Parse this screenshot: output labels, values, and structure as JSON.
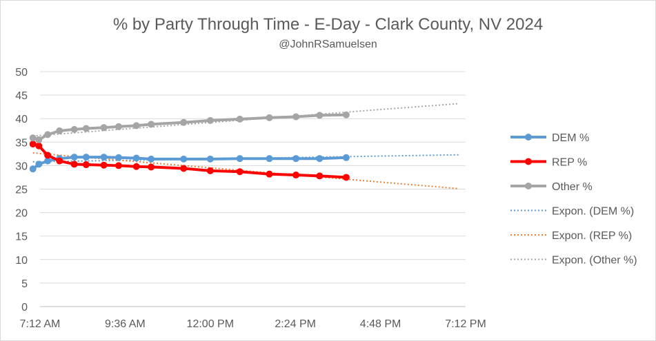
{
  "chart_data": {
    "type": "line",
    "title": "% by Party Through Time - E-Day - Clark County, NV 2024",
    "subtitle": "@JohnRSamuelsen",
    "xlabel": "",
    "ylabel": "",
    "ylim": [
      0,
      50
    ],
    "yticks": [
      0,
      5,
      10,
      15,
      20,
      25,
      30,
      35,
      40,
      45,
      50
    ],
    "xlim_minutes": [
      432,
      1152
    ],
    "xticks": [
      {
        "label": "7:12 AM",
        "minutes": 432
      },
      {
        "label": "9:36 AM",
        "minutes": 576
      },
      {
        "label": "12:00 PM",
        "minutes": 720
      },
      {
        "label": "2:24 PM",
        "minutes": 864
      },
      {
        "label": "4:48 PM",
        "minutes": 1008
      },
      {
        "label": "7:12 PM",
        "minutes": 1152
      }
    ],
    "grid": true,
    "legend_position": "right",
    "series": [
      {
        "name": "DEM %",
        "color": "#5b9bd5",
        "style": "line-marker",
        "x_minutes": [
          420,
          430,
          445,
          465,
          490,
          510,
          540,
          565,
          595,
          620,
          675,
          720,
          770,
          820,
          865,
          905,
          950
        ],
        "values": [
          29.3,
          30.3,
          31.0,
          31.5,
          31.8,
          31.8,
          31.8,
          31.7,
          31.6,
          31.4,
          31.4,
          31.4,
          31.5,
          31.5,
          31.5,
          31.5,
          31.7
        ]
      },
      {
        "name": "REP %",
        "color": "#ff0000",
        "style": "line-marker",
        "x_minutes": [
          420,
          430,
          445,
          465,
          490,
          510,
          540,
          565,
          595,
          620,
          675,
          720,
          770,
          820,
          865,
          905,
          950
        ],
        "values": [
          34.6,
          34.2,
          32.2,
          31.0,
          30.3,
          30.2,
          30.1,
          30.0,
          29.8,
          29.7,
          29.4,
          28.9,
          28.7,
          28.2,
          28.0,
          27.8,
          27.5
        ]
      },
      {
        "name": "Other %",
        "color": "#a5a5a5",
        "style": "line-marker",
        "x_minutes": [
          420,
          430,
          445,
          465,
          490,
          510,
          540,
          565,
          595,
          620,
          675,
          720,
          770,
          820,
          865,
          905,
          950
        ],
        "values": [
          35.9,
          35.5,
          36.6,
          37.4,
          37.7,
          37.9,
          38.1,
          38.3,
          38.5,
          38.8,
          39.2,
          39.6,
          39.9,
          40.2,
          40.4,
          40.7,
          40.8
        ]
      },
      {
        "name": "Expon. (DEM %)",
        "color": "#5b9bd5",
        "style": "dotted",
        "x_minutes": [
          420,
          1140
        ],
        "values": [
          30.8,
          32.3
        ]
      },
      {
        "name": "Expon. (REP %)",
        "color": "#ed7d31",
        "style": "dotted",
        "x_minutes": [
          420,
          1140
        ],
        "values": [
          32.7,
          25.1
        ]
      },
      {
        "name": "Expon. (Other %)",
        "color": "#a5a5a5",
        "style": "dotted",
        "x_minutes": [
          420,
          1140
        ],
        "values": [
          36.3,
          43.2
        ]
      }
    ]
  }
}
